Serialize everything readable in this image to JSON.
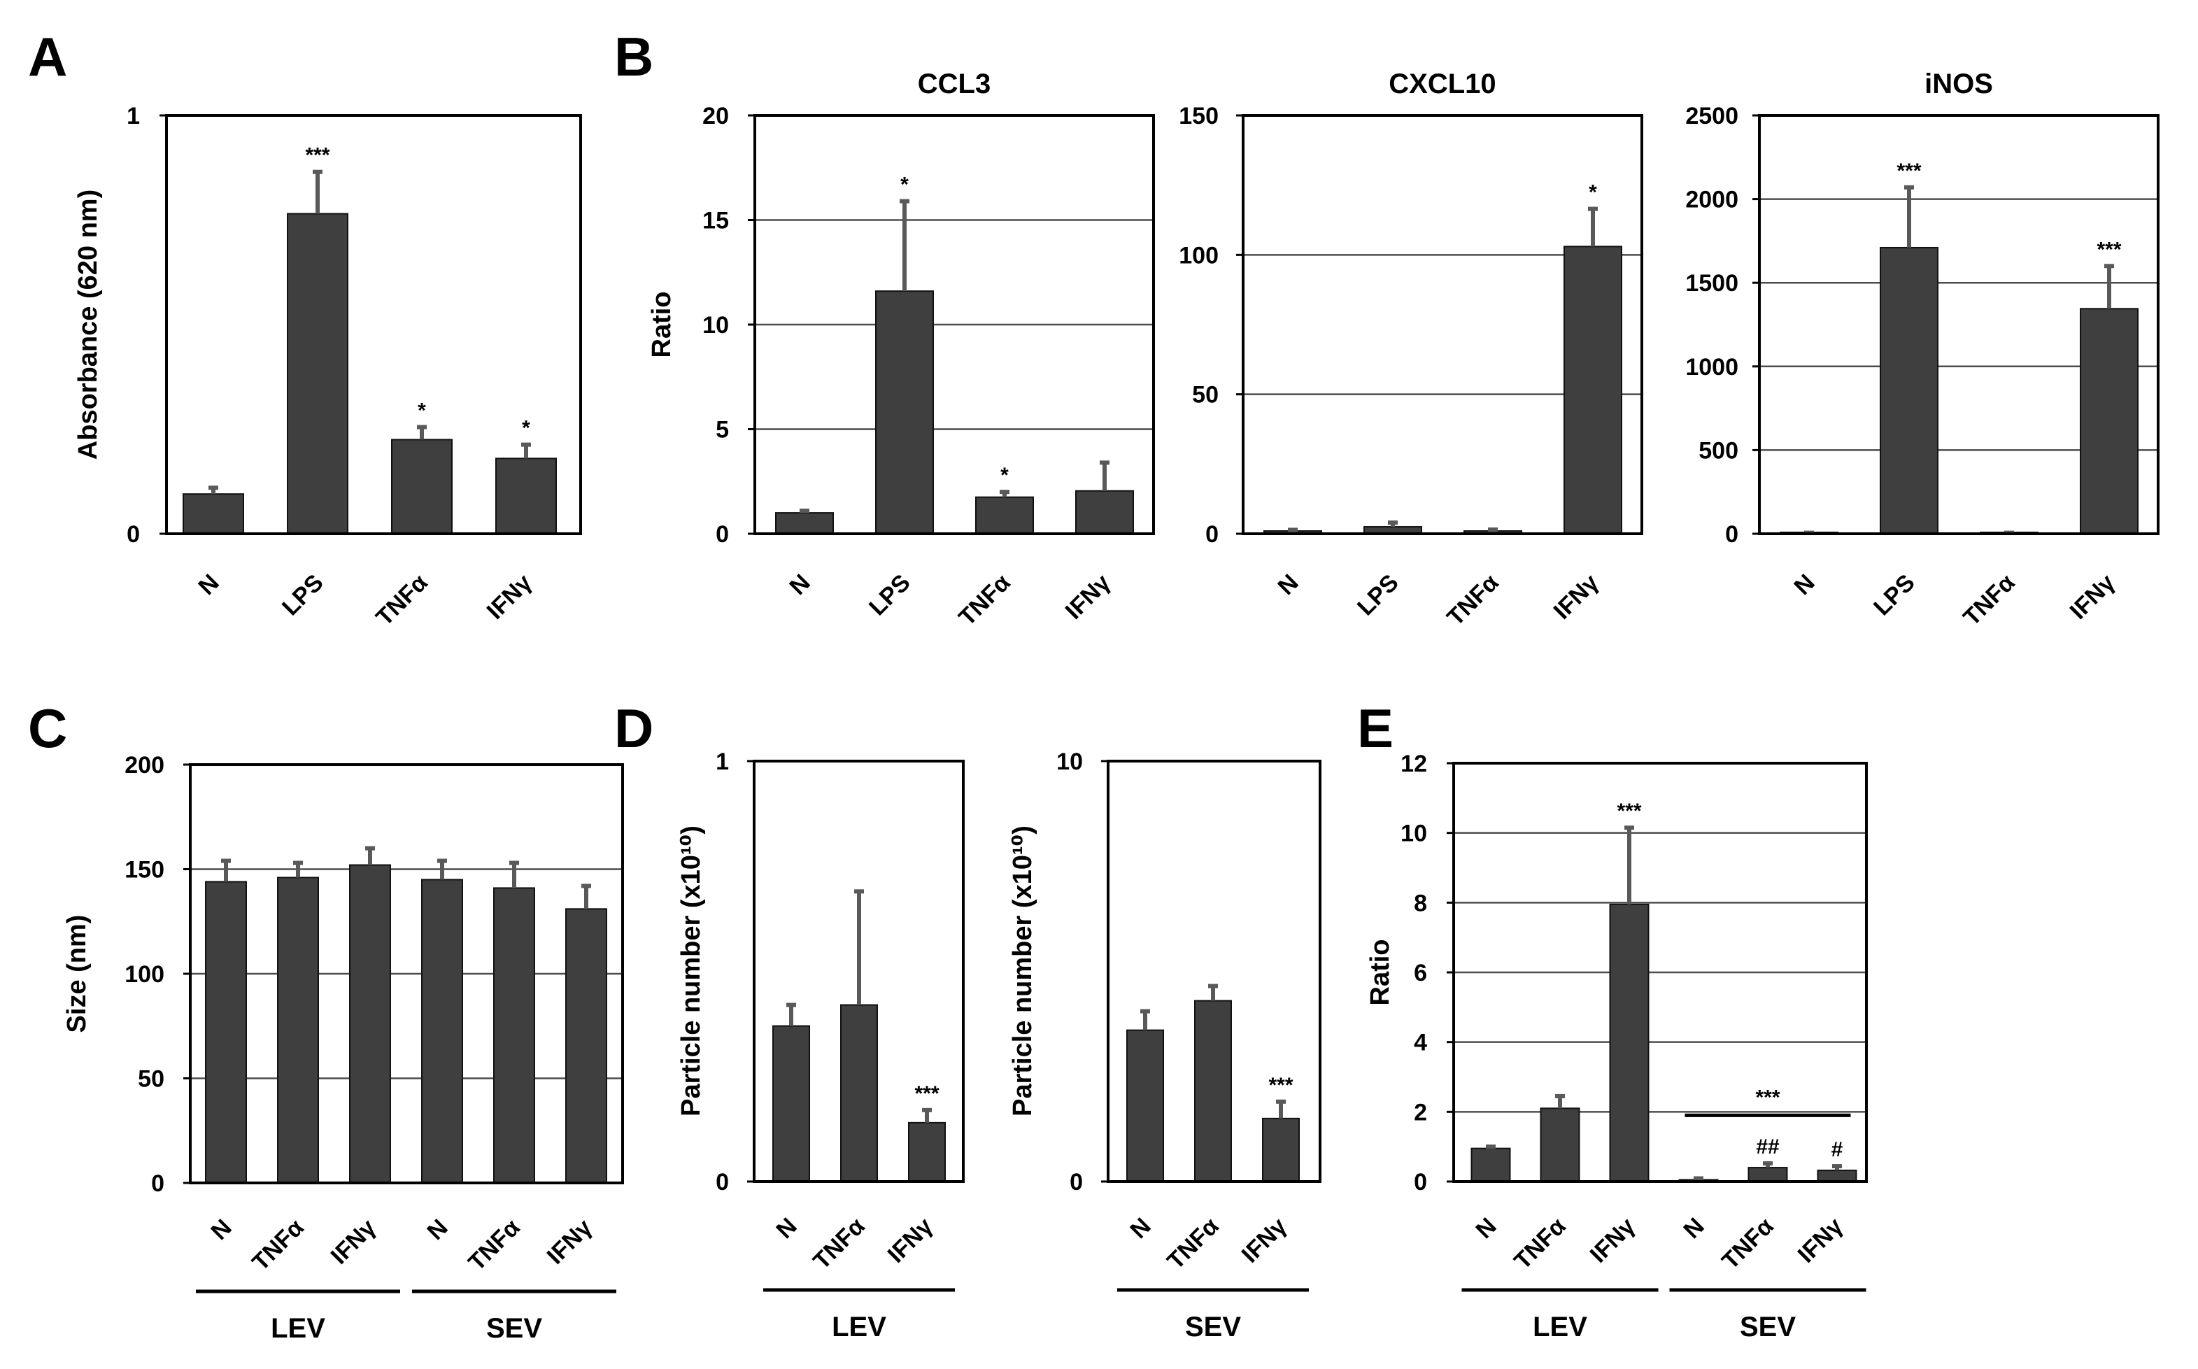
{
  "colors": {
    "bar": "#3f3f3f",
    "error": "#595959",
    "frame": "#000000",
    "grid": "#4d4d4d"
  },
  "chart_data": [
    {
      "id": "A",
      "panel_label": "A",
      "type": "bar",
      "title": "",
      "ylabel": "Absorbance (620 nm)",
      "ylim": [
        0,
        1
      ],
      "yticks": [
        0,
        1
      ],
      "categories": [
        "N",
        "LPS",
        "TNFα",
        "IFNγ"
      ],
      "values": [
        0.095,
        0.765,
        0.225,
        0.18
      ],
      "errors": [
        0.015,
        0.1,
        0.03,
        0.033
      ],
      "significance": [
        "",
        "***",
        "*",
        "*"
      ],
      "grid": false
    },
    {
      "id": "B1",
      "panel_label": "B",
      "type": "bar",
      "title": "CCL3",
      "ylabel": "Ratio",
      "ylim": [
        0,
        20
      ],
      "yticks": [
        0,
        5,
        10,
        15,
        20
      ],
      "categories": [
        "N",
        "LPS",
        "TNFα",
        "IFNγ"
      ],
      "values": [
        1,
        11.6,
        1.75,
        2.05
      ],
      "errors": [
        0.1,
        4.3,
        0.25,
        1.35
      ],
      "significance": [
        "",
        "*",
        "*",
        ""
      ],
      "grid": true
    },
    {
      "id": "B2",
      "panel_label": "",
      "type": "bar",
      "title": "CXCL10",
      "ylabel": "",
      "ylim": [
        0,
        150
      ],
      "yticks": [
        0,
        50,
        100,
        150
      ],
      "categories": [
        "N",
        "LPS",
        "TNFα",
        "IFNγ"
      ],
      "values": [
        1,
        2.5,
        1,
        103
      ],
      "errors": [
        0.4,
        1.5,
        0.5,
        13.5
      ],
      "significance": [
        "",
        "",
        "",
        "*"
      ],
      "grid": true
    },
    {
      "id": "B3",
      "panel_label": "",
      "type": "bar",
      "title": "iNOS",
      "ylabel": "",
      "ylim": [
        0,
        2500
      ],
      "yticks": [
        0,
        500,
        1000,
        1500,
        2000,
        2500
      ],
      "categories": [
        "N",
        "LPS",
        "TNFα",
        "IFNγ"
      ],
      "values": [
        1,
        1710,
        1,
        1345
      ],
      "errors": [
        5,
        360,
        5,
        255
      ],
      "significance": [
        "",
        "***",
        "",
        "***"
      ],
      "grid": true
    },
    {
      "id": "C",
      "panel_label": "C",
      "type": "bar",
      "title": "",
      "ylabel": "Size (nm)",
      "ylim": [
        0,
        200
      ],
      "yticks": [
        0,
        50,
        100,
        150,
        200
      ],
      "categories": [
        "N",
        "TNFα",
        "IFNγ",
        "N",
        "TNFα",
        "IFNγ"
      ],
      "values": [
        144,
        146,
        152,
        145,
        141,
        131
      ],
      "errors": [
        10,
        7,
        8,
        9,
        12,
        11
      ],
      "significance": [
        "",
        "",
        "",
        "",
        "",
        ""
      ],
      "groups": [
        {
          "label": "LEV",
          "from": 0,
          "to": 2
        },
        {
          "label": "SEV",
          "from": 3,
          "to": 5
        }
      ],
      "grid": true
    },
    {
      "id": "D1",
      "panel_label": "D",
      "type": "bar",
      "title": "",
      "ylabel": "Particle number (x10¹⁰)",
      "ylim": [
        0,
        1
      ],
      "yticks": [
        0,
        1
      ],
      "categories": [
        "N",
        "TNFα",
        "IFNγ"
      ],
      "values": [
        0.37,
        0.42,
        0.14
      ],
      "errors": [
        0.05,
        0.27,
        0.03
      ],
      "significance": [
        "",
        "",
        "***"
      ],
      "groups": [
        {
          "label": "LEV",
          "from": 0,
          "to": 2
        }
      ],
      "grid": false
    },
    {
      "id": "D2",
      "panel_label": "",
      "type": "bar",
      "title": "",
      "ylabel": "Particle number (x10¹⁰)",
      "ylim": [
        0,
        10
      ],
      "yticks": [
        0,
        10
      ],
      "categories": [
        "N",
        "TNFα",
        "IFNγ"
      ],
      "values": [
        3.6,
        4.3,
        1.5
      ],
      "errors": [
        0.45,
        0.35,
        0.4
      ],
      "significance": [
        "",
        "",
        "***"
      ],
      "groups": [
        {
          "label": "SEV",
          "from": 0,
          "to": 2
        }
      ],
      "grid": false
    },
    {
      "id": "E",
      "panel_label": "E",
      "type": "bar",
      "title": "",
      "ylabel": "Ratio",
      "ylim": [
        0,
        12
      ],
      "yticks": [
        0,
        2,
        4,
        6,
        8,
        10,
        12
      ],
      "categories": [
        "N",
        "TNFα",
        "IFNγ",
        "N",
        "TNFα",
        "IFNγ"
      ],
      "values": [
        0.95,
        2.1,
        7.95,
        0.05,
        0.4,
        0.32
      ],
      "errors": [
        0.05,
        0.35,
        2.2,
        0.04,
        0.12,
        0.12
      ],
      "significance": [
        "",
        "",
        "***",
        "",
        "##",
        "#"
      ],
      "groups": [
        {
          "label": "LEV",
          "from": 0,
          "to": 2
        },
        {
          "label": "SEV",
          "from": 3,
          "to": 5
        }
      ],
      "bracket": {
        "from": 3,
        "to": 5,
        "label": "***"
      },
      "grid": true
    }
  ]
}
